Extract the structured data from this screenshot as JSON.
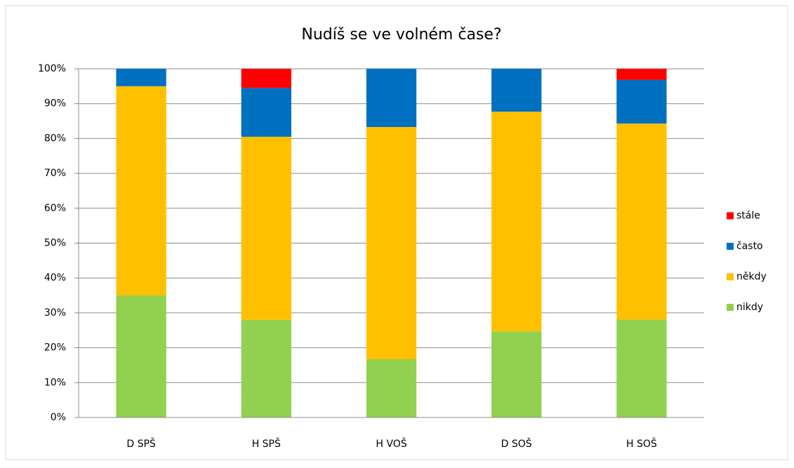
{
  "chart_data": {
    "type": "stacked_bar",
    "title": "Nudíš se ve volném čase?",
    "categories": [
      "D SPŠ",
      "H SPŠ",
      "H VOŠ",
      "D SOŠ",
      "H SOŠ"
    ],
    "series": [
      {
        "name": "nikdy",
        "color": "#92d050",
        "values": [
          35,
          28,
          16.7,
          24.7,
          28.1
        ]
      },
      {
        "name": "někdy",
        "color": "#ffc000",
        "values": [
          60,
          52.5,
          66.6,
          63,
          56.2
        ]
      },
      {
        "name": "často",
        "color": "#0070c0",
        "values": [
          5,
          14,
          16.7,
          12.3,
          12.5
        ]
      },
      {
        "name": "stále",
        "color": "#ff0000",
        "values": [
          0,
          5.5,
          0,
          0,
          3.2
        ]
      }
    ],
    "ylim": [
      0,
      100
    ],
    "yticks": [
      {
        "value": 0,
        "label": "0%"
      },
      {
        "value": 10,
        "label": "10%"
      },
      {
        "value": 20,
        "label": "20%"
      },
      {
        "value": 30,
        "label": "30%"
      },
      {
        "value": 40,
        "label": "40%"
      },
      {
        "value": 50,
        "label": "50%"
      },
      {
        "value": 60,
        "label": "60%"
      },
      {
        "value": 70,
        "label": "70%"
      },
      {
        "value": 80,
        "label": "80%"
      },
      {
        "value": 90,
        "label": "90%"
      },
      {
        "value": 100,
        "label": "100%"
      }
    ],
    "grid": true,
    "legend": "right"
  }
}
